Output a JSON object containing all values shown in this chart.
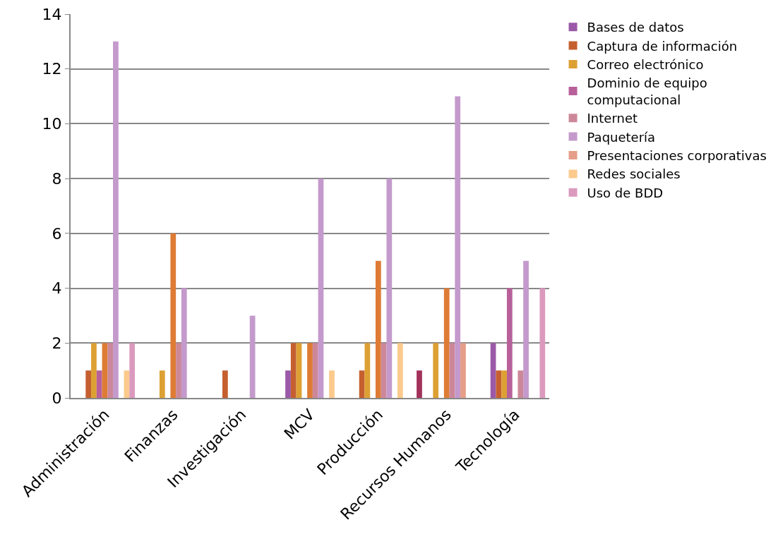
{
  "chart_data": {
    "type": "bar",
    "categories": [
      "Administración",
      "Finanzas",
      "Investigación",
      "MCV",
      "Producción",
      "Recursos Humanos",
      "Tecnología"
    ],
    "series": [
      {
        "color": "#a3325a",
        "values": [
          0,
          0,
          0,
          0,
          0,
          1,
          0
        ]
      },
      {
        "name": "Bases de datos",
        "color": "#9b59a8",
        "values": [
          0,
          0,
          0,
          1,
          0,
          0,
          2
        ]
      },
      {
        "name": "Captura de información",
        "color": "#c55f30",
        "values": [
          1,
          0,
          1,
          2,
          1,
          0,
          1
        ]
      },
      {
        "name": "Correo electrónico",
        "color": "#dda033",
        "values": [
          2,
          1,
          0,
          2,
          2,
          2,
          1
        ]
      },
      {
        "name": "Dominio de equipo computacional",
        "color": "#b8609a",
        "values": [
          1,
          0,
          0,
          0,
          0,
          0,
          4
        ]
      },
      {
        "color": "#de7b35",
        "values": [
          2,
          6,
          0,
          2,
          5,
          4,
          0
        ]
      },
      {
        "name": "Internet",
        "color": "#cc8899",
        "values": [
          2,
          2,
          0,
          2,
          2,
          2,
          1
        ]
      },
      {
        "name": "Paquetería",
        "color": "#c49acc",
        "values": [
          13,
          4,
          3,
          8,
          8,
          11,
          5
        ]
      },
      {
        "name": "Presentaciones corporativas",
        "color": "#e59e88",
        "values": [
          0,
          0,
          0,
          0,
          0,
          2,
          0
        ]
      },
      {
        "name": "Redes sociales",
        "color": "#fbca8c",
        "values": [
          1,
          0,
          0,
          1,
          2,
          0,
          0
        ]
      },
      {
        "name": "Uso de BDD",
        "color": "#db9abd",
        "values": [
          2,
          0,
          0,
          0,
          0,
          0,
          4
        ]
      }
    ],
    "ylim": [
      0,
      14
    ],
    "yticks": [
      0,
      2,
      4,
      6,
      8,
      10,
      12,
      14
    ],
    "grid": "y",
    "legend": "right"
  }
}
